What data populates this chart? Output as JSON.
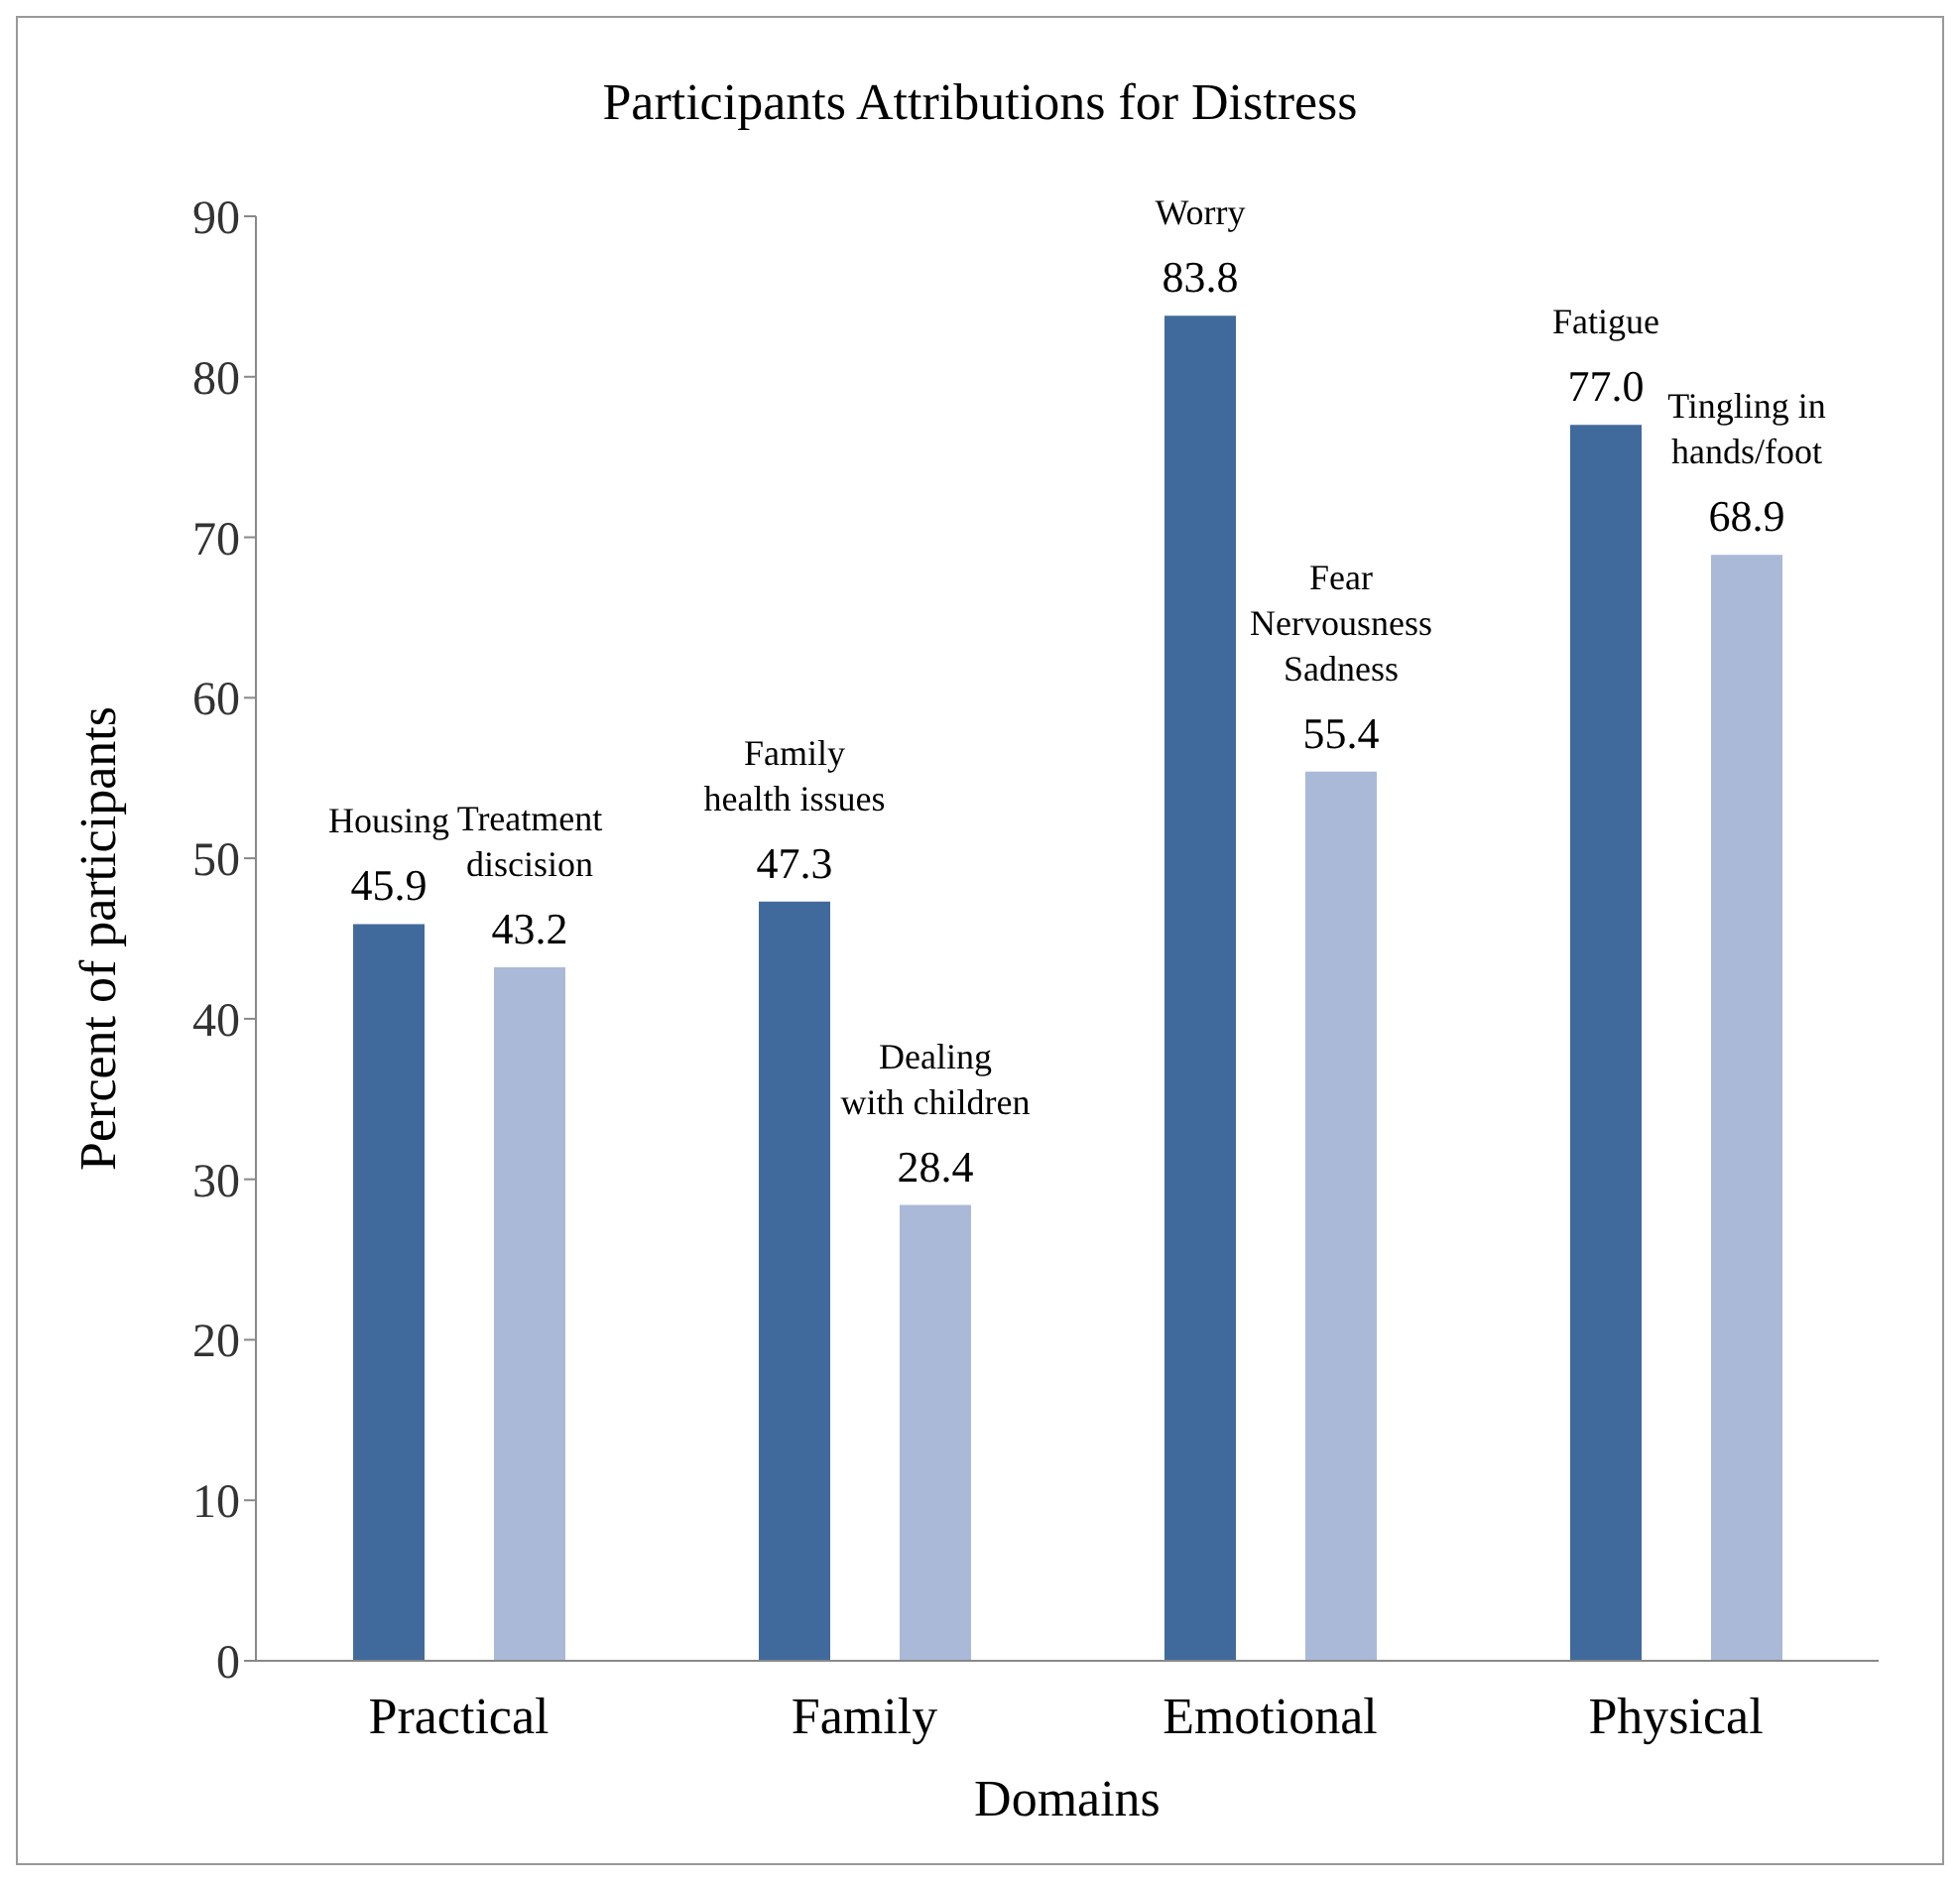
{
  "chart_data": {
    "type": "bar",
    "title": "Participants Attributions for Distress",
    "xlabel": "Domains",
    "ylabel": "Percent of participants",
    "categories": [
      "Practical",
      "Family",
      "Emotional",
      "Physical"
    ],
    "series": [
      {
        "color": "#416a9c",
        "values": [
          45.9,
          47.3,
          83.8,
          77.0
        ],
        "value_labels": [
          "45.9",
          "47.3",
          "83.8",
          "77.0"
        ]
      },
      {
        "color": "#aab9d8",
        "values": [
          43.2,
          28.4,
          55.4,
          68.9
        ],
        "value_labels": [
          "43.2",
          "28.4",
          "55.4",
          "68.9"
        ]
      }
    ],
    "annotations": [
      "Housing",
      "Treatment\ndiscision",
      "Family\nhealth issues",
      "Dealing\nwith children",
      "Worry",
      "Fear\nNervousness\nSadness",
      "Fatigue",
      "Tingling in\nhands/foot"
    ],
    "ylim": [
      0,
      90
    ],
    "yticks": [
      0,
      10,
      20,
      30,
      40,
      50,
      60,
      70,
      80,
      90
    ],
    "grid": false,
    "legend": false
  }
}
